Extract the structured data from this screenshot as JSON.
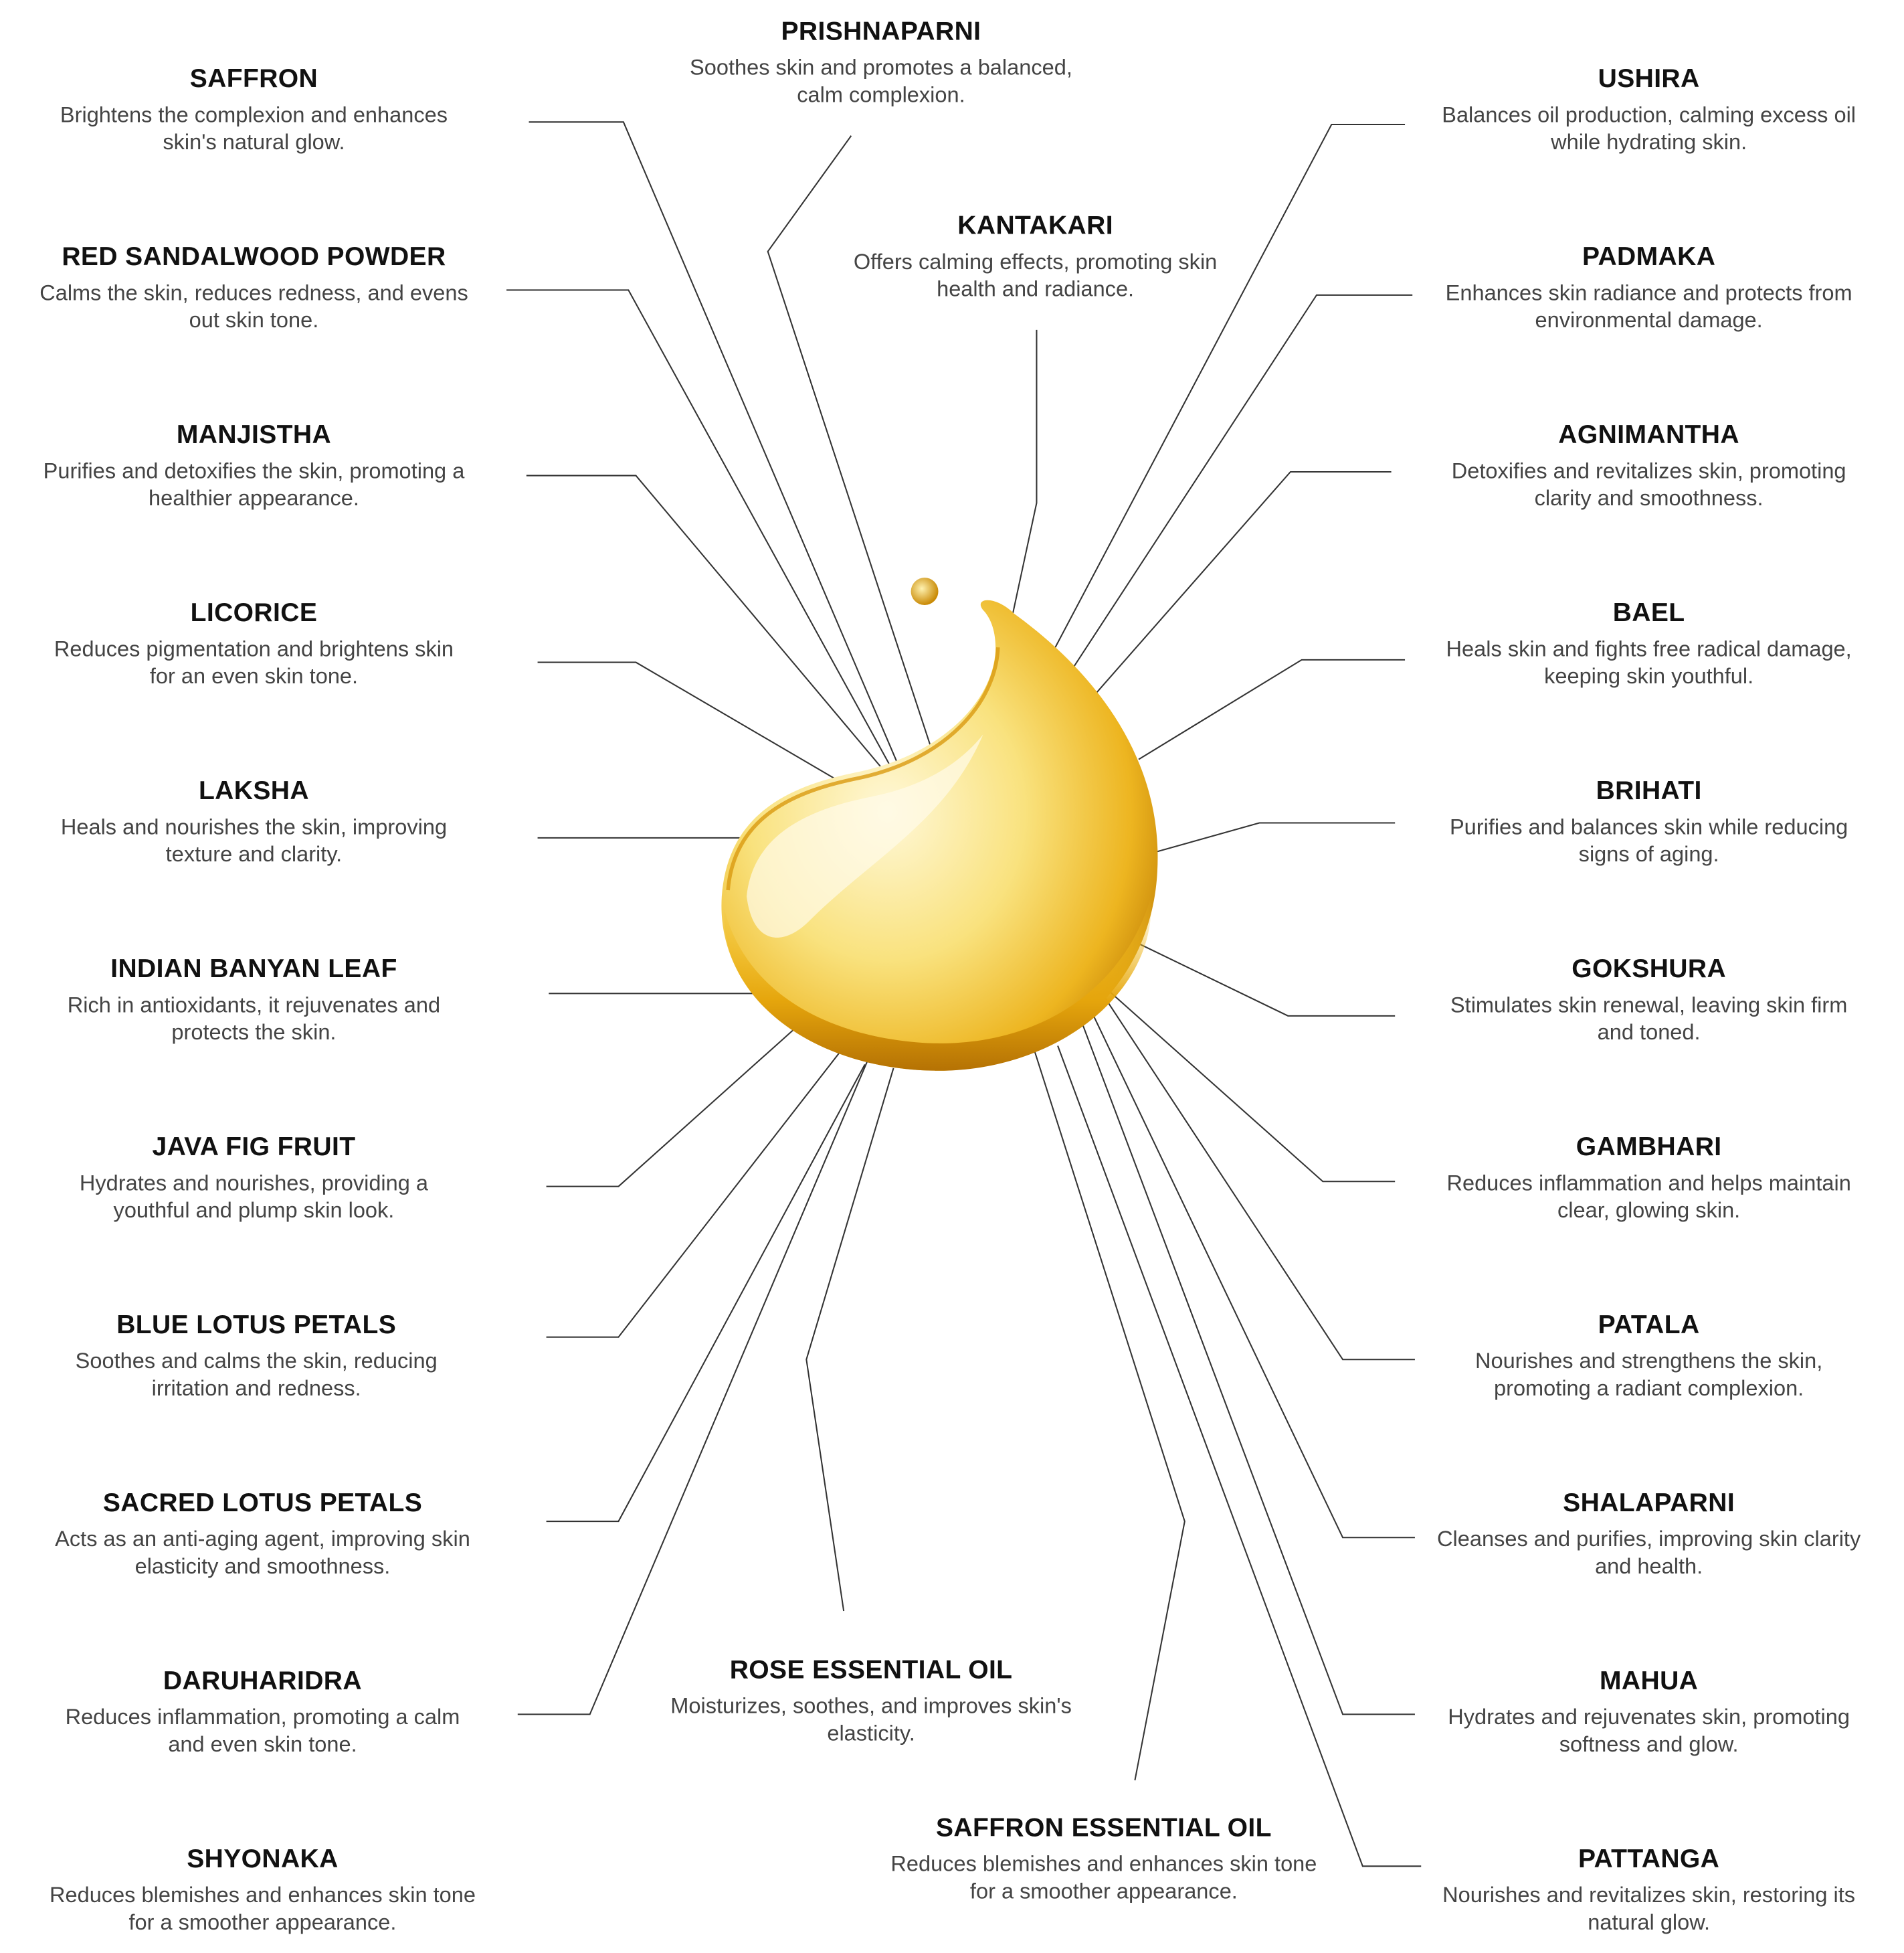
{
  "colors": {
    "title": "#111111",
    "description": "#444444",
    "connector": "#333333",
    "oil_light": "#FBE9A0",
    "oil_mid": "#F2C230",
    "oil_dark": "#C98A05"
  },
  "center_image": "golden-oil-droplet",
  "left": [
    {
      "title": "SAFFRON",
      "desc": [
        "Brightens the complexion and enhances",
        "skin's natural glow."
      ]
    },
    {
      "title": "RED SANDALWOOD POWDER",
      "desc": [
        "Calms the skin, reduces redness, and evens",
        "out skin tone."
      ]
    },
    {
      "title": "MANJISTHA",
      "desc": [
        "Purifies and detoxifies the skin, promoting a",
        "healthier appearance."
      ]
    },
    {
      "title": "LICORICE",
      "desc": [
        "Reduces pigmentation and brightens skin",
        "for an even skin tone."
      ]
    },
    {
      "title": "LAKSHA",
      "desc": [
        "Heals and nourishes the skin, improving",
        "texture and clarity."
      ]
    },
    {
      "title": "INDIAN BANYAN LEAF",
      "desc": [
        "Rich in antioxidants, it rejuvenates and",
        "protects the skin."
      ]
    },
    {
      "title": "JAVA FIG FRUIT",
      "desc": [
        "Hydrates and nourishes, providing a",
        "youthful and plump skin look."
      ]
    },
    {
      "title": "BLUE LOTUS PETALS",
      "desc": [
        "Soothes and calms the skin, reducing",
        "irritation and redness."
      ]
    },
    {
      "title": "SACRED LOTUS PETALS",
      "desc": [
        "Acts as an anti-aging agent, improving skin",
        "elasticity and smoothness."
      ]
    },
    {
      "title": "DARUHARIDRA",
      "desc": [
        "Reduces inflammation, promoting a calm",
        "and even skin tone."
      ]
    },
    {
      "title": "SHYONAKA",
      "desc": [
        "Reduces blemishes and enhances skin tone",
        "for a smoother appearance."
      ]
    }
  ],
  "right": [
    {
      "title": "USHIRA",
      "desc": [
        "Balances oil production, calming excess oil",
        "while hydrating skin."
      ]
    },
    {
      "title": "PADMAKA",
      "desc": [
        "Enhances skin radiance and protects from",
        "environmental damage."
      ]
    },
    {
      "title": "AGNIMANTHA",
      "desc": [
        "Detoxifies and revitalizes skin, promoting",
        "clarity and smoothness."
      ]
    },
    {
      "title": "BAEL",
      "desc": [
        "Heals skin and fights free radical damage,",
        "keeping skin youthful."
      ]
    },
    {
      "title": "BRIHATI",
      "desc": [
        "Purifies and balances skin while reducing",
        "signs of aging."
      ]
    },
    {
      "title": "GOKSHURA",
      "desc": [
        "Stimulates skin renewal, leaving skin firm",
        "and toned."
      ]
    },
    {
      "title": "GAMBHARI",
      "desc": [
        "Reduces inflammation and helps maintain",
        "clear, glowing skin."
      ]
    },
    {
      "title": "PATALA",
      "desc": [
        "Nourishes and strengthens the skin,",
        "promoting a radiant complexion."
      ]
    },
    {
      "title": "SHALAPARNI",
      "desc": [
        "Cleanses and purifies, improving skin clarity",
        "and health."
      ]
    },
    {
      "title": "MAHUA",
      "desc": [
        "Hydrates and rejuvenates skin, promoting",
        "softness and glow."
      ]
    },
    {
      "title": "PATTANGA",
      "desc": [
        "Nourishes and revitalizes skin, restoring its",
        "natural glow."
      ]
    }
  ],
  "center": [
    {
      "title": "PRISHNAPARNI",
      "desc": [
        "Soothes skin and promotes a balanced,",
        "calm complexion."
      ]
    },
    {
      "title": "KANTAKARI",
      "desc": [
        "Offers calming effects, promoting skin",
        "health and radiance."
      ]
    },
    {
      "title": "ROSE ESSENTIAL OIL",
      "desc": [
        "Moisturizes, soothes, and improves skin's",
        "elasticity."
      ]
    },
    {
      "title": "SAFFRON ESSENTIAL OIL",
      "desc": [
        "Reduces blemishes and enhances skin tone",
        "for a smoother appearance."
      ]
    }
  ]
}
